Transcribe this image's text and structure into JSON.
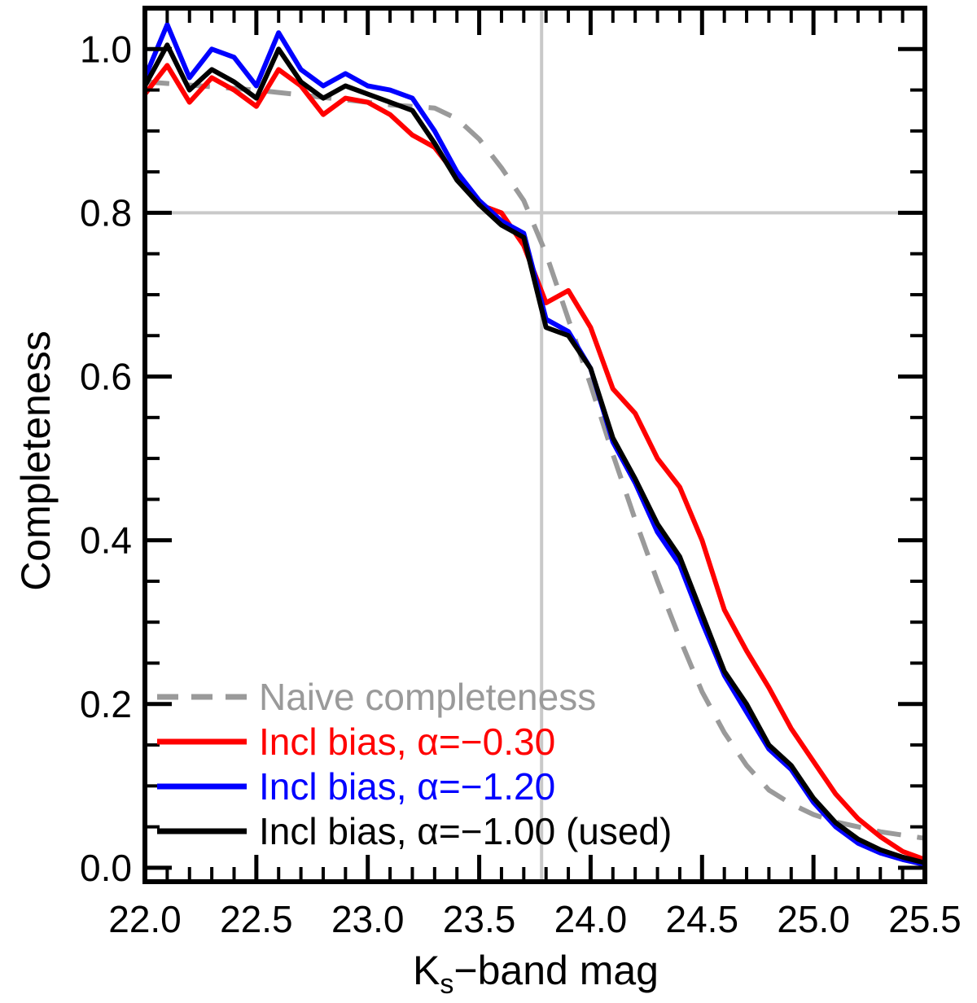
{
  "chart_data": {
    "type": "line",
    "title": "",
    "ylabel": "Completeness",
    "xlabel": {
      "prefix": "K",
      "sub": "s",
      "suffix": "−band mag"
    },
    "xlim": [
      22.0,
      25.5
    ],
    "ylim": [
      -0.017,
      1.05
    ],
    "grid": false,
    "legend_position": "bottom-left",
    "x_major_ticks": [
      22.0,
      22.5,
      23.0,
      23.5,
      24.0,
      24.5,
      25.0,
      25.5
    ],
    "x_tick_labels": [
      "22.0",
      "22.5",
      "23.0",
      "23.5",
      "24.0",
      "24.5",
      "25.0",
      "25.5"
    ],
    "x_minor_step": 0.1,
    "y_major_ticks": [
      0.0,
      0.2,
      0.4,
      0.6,
      0.8,
      1.0
    ],
    "y_tick_labels": [
      "0.0",
      "0.2",
      "0.4",
      "0.6",
      "0.8",
      "1.0"
    ],
    "y_minor_step": 0.05,
    "crosshair": {
      "x": 23.78,
      "y": 0.8,
      "color": "#c9c9c9"
    },
    "x": [
      22.0,
      22.1,
      22.2,
      22.3,
      22.4,
      22.5,
      22.6,
      22.7,
      22.8,
      22.9,
      23.0,
      23.1,
      23.2,
      23.3,
      23.4,
      23.5,
      23.6,
      23.7,
      23.8,
      23.9,
      24.0,
      24.1,
      24.2,
      24.3,
      24.4,
      24.5,
      24.6,
      24.7,
      24.8,
      24.9,
      25.0,
      25.1,
      25.2,
      25.3,
      25.4,
      25.5
    ],
    "series": [
      {
        "name": "Naive completeness",
        "color": "#9a9a9a",
        "dash": "30 20",
        "values": [
          0.96,
          0.958,
          0.956,
          0.954,
          0.952,
          0.95,
          0.947,
          0.944,
          0.941,
          0.938,
          0.935,
          0.932,
          0.93,
          0.928,
          0.915,
          0.89,
          0.855,
          0.815,
          0.75,
          0.67,
          0.59,
          0.505,
          0.425,
          0.35,
          0.28,
          0.215,
          0.165,
          0.125,
          0.095,
          0.078,
          0.065,
          0.056,
          0.05,
          0.044,
          0.04,
          0.036
        ]
      },
      {
        "name": "Incl bias, α=−0.30",
        "color": "#ff0000",
        "dash": null,
        "values": [
          0.945,
          0.98,
          0.935,
          0.965,
          0.95,
          0.93,
          0.975,
          0.955,
          0.92,
          0.94,
          0.935,
          0.92,
          0.895,
          0.88,
          0.845,
          0.81,
          0.8,
          0.76,
          0.69,
          0.705,
          0.66,
          0.585,
          0.555,
          0.5,
          0.465,
          0.4,
          0.315,
          0.265,
          0.22,
          0.17,
          0.13,
          0.09,
          0.06,
          0.038,
          0.02,
          0.01
        ]
      },
      {
        "name": "Incl bias, α=−1.20",
        "color": "#0000ff",
        "dash": null,
        "values": [
          0.965,
          1.03,
          0.965,
          1.0,
          0.99,
          0.955,
          1.02,
          0.975,
          0.955,
          0.97,
          0.955,
          0.95,
          0.94,
          0.9,
          0.85,
          0.815,
          0.79,
          0.775,
          0.67,
          0.655,
          0.61,
          0.52,
          0.47,
          0.41,
          0.37,
          0.3,
          0.235,
          0.19,
          0.145,
          0.12,
          0.08,
          0.05,
          0.03,
          0.018,
          0.01,
          0.004
        ]
      },
      {
        "name": "Incl bias, α=−1.00 (used)",
        "color": "#000000",
        "dash": null,
        "values": [
          0.955,
          1.005,
          0.95,
          0.975,
          0.96,
          0.94,
          1.0,
          0.96,
          0.94,
          0.955,
          0.945,
          0.935,
          0.925,
          0.885,
          0.84,
          0.81,
          0.785,
          0.77,
          0.66,
          0.65,
          0.61,
          0.525,
          0.475,
          0.42,
          0.38,
          0.31,
          0.24,
          0.2,
          0.15,
          0.125,
          0.085,
          0.055,
          0.035,
          0.022,
          0.013,
          0.006
        ]
      }
    ]
  }
}
